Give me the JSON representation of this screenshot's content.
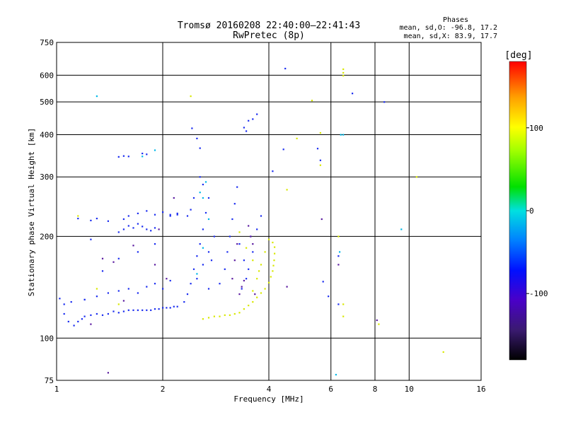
{
  "chart_data": {
    "type": "scatter",
    "title": "Tromsø 20160208 22:40:00–22:41:43",
    "subtitle": "RwPretec (8p)",
    "xlabel": "Frequency [MHz]",
    "ylabel": "Stationary phase Virtual Height [km]",
    "x_scale": "log",
    "y_scale": "log",
    "xlim": [
      1,
      16
    ],
    "ylim": [
      75,
      750
    ],
    "x_ticks": [
      1,
      2,
      4,
      6,
      8,
      10,
      16
    ],
    "y_ticks": [
      75,
      100,
      200,
      300,
      400,
      500,
      600,
      750
    ],
    "grid": true,
    "legend": {
      "title": "Phases",
      "lines": [
        "mean, sd,O: -96.8, 17.2",
        "mean, sd,X:  83.9, 17.7"
      ]
    },
    "colorbar": {
      "label": "[deg]",
      "range": [
        -180,
        180
      ],
      "ticks": [
        100,
        0,
        -100
      ]
    },
    "series": [
      {
        "values": [
          [
            1.05,
            118
          ],
          [
            1.08,
            112
          ],
          [
            1.12,
            109
          ],
          [
            1.15,
            112
          ],
          [
            1.18,
            114
          ],
          [
            1.2,
            116
          ],
          [
            1.25,
            117
          ],
          [
            1.3,
            118
          ],
          [
            1.35,
            117
          ],
          [
            1.4,
            118
          ],
          [
            1.45,
            120
          ],
          [
            1.5,
            119
          ],
          [
            1.55,
            120
          ],
          [
            1.6,
            121
          ],
          [
            1.65,
            121
          ],
          [
            1.7,
            121
          ],
          [
            1.75,
            121
          ],
          [
            1.8,
            121
          ],
          [
            1.85,
            121
          ],
          [
            1.9,
            122
          ],
          [
            1.95,
            122
          ],
          [
            2.0,
            123
          ],
          [
            2.05,
            123
          ],
          [
            2.1,
            123
          ],
          [
            2.15,
            124
          ],
          [
            2.2,
            124
          ],
          [
            1.02,
            131
          ],
          [
            1.05,
            126
          ],
          [
            1.1,
            128
          ],
          [
            1.2,
            130
          ],
          [
            1.3,
            133
          ],
          [
            1.4,
            136
          ],
          [
            1.5,
            138
          ],
          [
            1.6,
            140
          ],
          [
            1.7,
            136
          ],
          [
            1.8,
            142
          ],
          [
            1.9,
            145
          ],
          [
            2.0,
            140
          ],
          [
            2.1,
            148
          ],
          [
            1.5,
            206
          ],
          [
            1.55,
            210
          ],
          [
            1.6,
            215
          ],
          [
            1.65,
            212
          ],
          [
            1.7,
            218
          ],
          [
            1.75,
            214
          ],
          [
            1.8,
            210
          ],
          [
            1.85,
            208
          ],
          [
            1.9,
            212
          ],
          [
            1.55,
            225
          ],
          [
            1.6,
            230
          ],
          [
            1.7,
            234
          ],
          [
            1.8,
            238
          ],
          [
            1.9,
            232
          ],
          [
            2.0,
            236
          ],
          [
            2.1,
            232
          ],
          [
            2.2,
            234
          ],
          [
            1.5,
            344
          ],
          [
            1.55,
            346
          ],
          [
            1.6,
            345
          ],
          [
            1.75,
            352
          ],
          [
            1.8,
            350
          ],
          [
            1.35,
            158
          ],
          [
            1.5,
            172
          ],
          [
            1.7,
            180
          ],
          [
            1.9,
            190
          ],
          [
            1.25,
            196
          ],
          [
            1.15,
            226
          ],
          [
            1.25,
            223
          ],
          [
            1.3,
            226
          ],
          [
            1.4,
            222
          ],
          [
            2.3,
            128
          ],
          [
            2.35,
            135
          ],
          [
            2.4,
            145
          ],
          [
            2.45,
            160
          ],
          [
            2.5,
            175
          ],
          [
            2.55,
            190
          ],
          [
            2.6,
            210
          ],
          [
            2.65,
            235
          ],
          [
            2.7,
            260
          ],
          [
            2.6,
            285
          ],
          [
            2.55,
            300
          ],
          [
            2.45,
            260
          ],
          [
            2.4,
            240
          ],
          [
            2.35,
            230
          ],
          [
            2.5,
            150
          ],
          [
            2.6,
            165
          ],
          [
            2.7,
            180
          ],
          [
            2.8,
            200
          ],
          [
            2.75,
            170
          ],
          [
            2.7,
            140
          ],
          [
            2.9,
            145
          ],
          [
            3.0,
            160
          ],
          [
            3.05,
            180
          ],
          [
            3.1,
            200
          ],
          [
            3.15,
            225
          ],
          [
            3.2,
            250
          ],
          [
            3.25,
            280
          ],
          [
            3.3,
            190
          ],
          [
            3.4,
            170
          ],
          [
            3.5,
            160
          ],
          [
            3.6,
            180
          ],
          [
            3.7,
            210
          ],
          [
            3.8,
            230
          ],
          [
            3.55,
            200
          ],
          [
            3.45,
            150
          ],
          [
            3.35,
            140
          ],
          [
            2.42,
            418
          ],
          [
            2.55,
            365
          ],
          [
            2.5,
            390
          ],
          [
            3.5,
            440
          ],
          [
            3.6,
            445
          ],
          [
            3.7,
            460
          ],
          [
            3.4,
            420
          ],
          [
            3.45,
            410
          ],
          [
            4.45,
            628
          ],
          [
            4.4,
            362
          ],
          [
            4.1,
            312
          ],
          [
            5.6,
            336
          ],
          [
            5.5,
            364
          ],
          [
            5.7,
            147
          ],
          [
            5.9,
            133
          ],
          [
            6.3,
            175
          ],
          [
            6.3,
            126
          ],
          [
            8.5,
            500
          ],
          [
            6.9,
            530
          ],
          [
            2.1,
            230
          ],
          [
            2.2,
            232
          ],
          [
            1.2,
            130
          ]
        ]
      },
      {
        "values": [
          [
            2.6,
            114
          ],
          [
            2.7,
            115
          ],
          [
            2.8,
            116
          ],
          [
            2.9,
            116
          ],
          [
            3.0,
            117
          ],
          [
            3.1,
            117
          ],
          [
            3.2,
            118
          ],
          [
            3.3,
            119
          ],
          [
            3.4,
            122
          ],
          [
            3.5,
            125
          ],
          [
            3.6,
            128
          ],
          [
            3.7,
            132
          ],
          [
            3.8,
            136
          ],
          [
            3.9,
            140
          ],
          [
            4.0,
            146
          ],
          [
            4.05,
            152
          ],
          [
            4.1,
            158
          ],
          [
            4.12,
            164
          ],
          [
            4.14,
            170
          ],
          [
            4.15,
            178
          ],
          [
            4.15,
            186
          ],
          [
            4.1,
            192
          ],
          [
            4.0,
            196
          ],
          [
            3.9,
            180
          ],
          [
            3.8,
            165
          ],
          [
            3.7,
            150
          ],
          [
            3.6,
            138
          ],
          [
            3.3,
            206
          ],
          [
            3.45,
            185
          ],
          [
            3.6,
            170
          ],
          [
            3.75,
            158
          ],
          [
            2.4,
            520
          ],
          [
            1.15,
            230
          ],
          [
            5.6,
            405
          ],
          [
            6.5,
            598
          ],
          [
            6.5,
            610
          ],
          [
            6.5,
            625
          ],
          [
            6.3,
            200
          ],
          [
            6.5,
            126
          ],
          [
            6.5,
            116
          ],
          [
            12.5,
            91
          ],
          [
            10.5,
            300
          ],
          [
            8.2,
            110
          ],
          [
            4.8,
            390
          ],
          [
            5.3,
            505
          ],
          [
            4.5,
            275
          ],
          [
            1.3,
            140
          ],
          [
            1.5,
            126
          ],
          [
            5.6,
            325
          ]
        ]
      },
      {
        "values": [
          [
            2.55,
            270
          ],
          [
            2.65,
            290
          ],
          [
            2.6,
            260
          ],
          [
            2.7,
            225
          ],
          [
            1.9,
            360
          ],
          [
            1.75,
            345
          ],
          [
            1.3,
            520
          ],
          [
            6.4,
            400
          ],
          [
            6.5,
            400
          ],
          [
            6.2,
            78
          ],
          [
            6.35,
            180
          ],
          [
            9.5,
            210
          ],
          [
            2.5,
            155
          ],
          [
            2.6,
            185
          ]
        ]
      },
      {
        "values": [
          [
            1.9,
            165
          ],
          [
            1.95,
            210
          ],
          [
            2.05,
            150
          ],
          [
            3.6,
            190
          ],
          [
            3.55,
            200
          ],
          [
            3.5,
            215
          ],
          [
            3.3,
            135
          ],
          [
            3.35,
            142
          ],
          [
            3.15,
            150
          ],
          [
            3.2,
            170
          ],
          [
            3.25,
            190
          ],
          [
            1.25,
            110
          ],
          [
            1.4,
            79
          ],
          [
            1.55,
            129
          ],
          [
            2.15,
            260
          ],
          [
            5.65,
            225
          ],
          [
            3.65,
            135
          ],
          [
            3.4,
            148
          ],
          [
            6.3,
            165
          ],
          [
            8.1,
            113
          ],
          [
            4.5,
            142
          ],
          [
            1.45,
            168
          ],
          [
            1.35,
            172
          ],
          [
            1.65,
            188
          ]
        ]
      }
    ]
  }
}
